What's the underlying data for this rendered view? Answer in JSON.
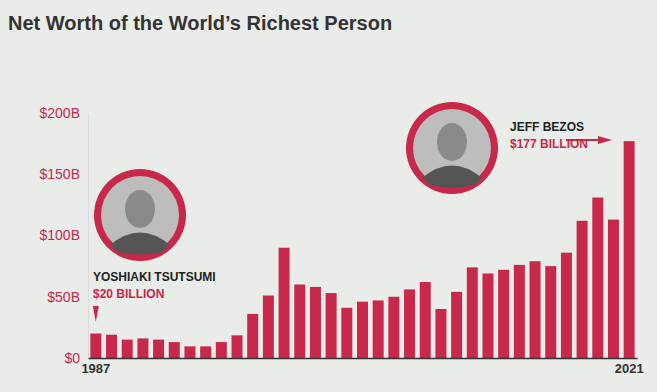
{
  "chart_data": {
    "type": "bar",
    "title": "Net Worth of the World’s Richest Person",
    "categories": [
      "1987",
      null,
      null,
      null,
      null,
      null,
      null,
      null,
      null,
      null,
      null,
      null,
      null,
      null,
      null,
      null,
      null,
      null,
      null,
      null,
      null,
      null,
      null,
      null,
      null,
      null,
      null,
      null,
      null,
      null,
      null,
      null,
      null,
      null,
      "2021"
    ],
    "values": [
      20,
      19,
      15,
      16,
      15,
      13,
      9.5,
      9.5,
      13,
      18.5,
      36,
      51,
      90,
      60,
      58,
      53,
      41,
      46,
      47,
      50,
      56,
      62,
      40,
      54,
      74,
      69,
      72,
      76,
      79,
      75,
      86,
      112,
      131,
      113,
      177
    ],
    "color": "#c8284a",
    "ylim": [
      0,
      200
    ],
    "yticks": [
      {
        "value": 0,
        "label": "$0"
      },
      {
        "value": 50,
        "label": "$50B"
      },
      {
        "value": 100,
        "label": "$100B"
      },
      {
        "value": 150,
        "label": "$150B"
      },
      {
        "value": 200,
        "label": "$200B"
      }
    ],
    "grid": false,
    "annotations": [
      "YOSHIAKI TSUTSUMI",
      "$20 BILLION",
      "JEFF BEZOS",
      "$177 BILLION"
    ]
  }
}
